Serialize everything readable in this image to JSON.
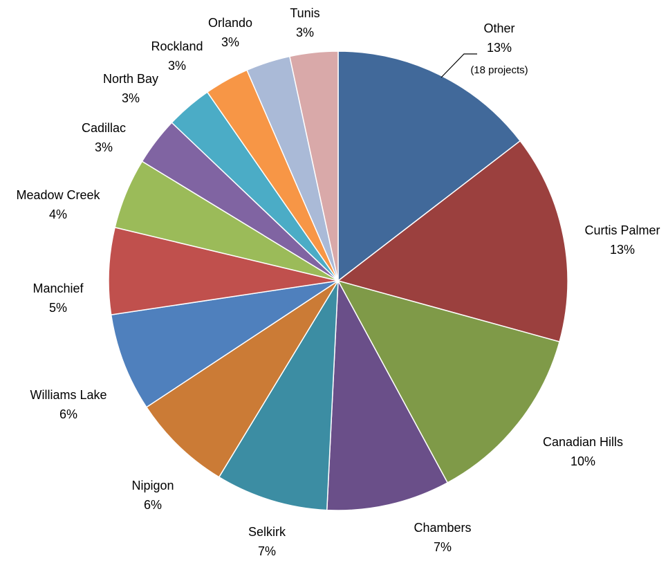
{
  "chart_data": {
    "type": "pie",
    "start_angle_deg": 0,
    "direction": "clockwise",
    "slices": [
      {
        "name": "Other",
        "value": 13,
        "label": "13%",
        "note": "(18 projects)",
        "color": "#41699A"
      },
      {
        "name": "Curtis Palmer",
        "value": 13,
        "label": "13%",
        "color": "#9B403E"
      },
      {
        "name": "Canadian Hills",
        "value": 10,
        "label": "10%",
        "color": "#7F9A48"
      },
      {
        "name": "Chambers",
        "value": 7,
        "label": "7%",
        "color": "#6A4F89"
      },
      {
        "name": "Selkirk",
        "value": 7,
        "label": "7%",
        "color": "#3C8DA3"
      },
      {
        "name": "Nipigon",
        "value": 6,
        "label": "6%",
        "color": "#CB7B36"
      },
      {
        "name": "Williams Lake",
        "value": 6,
        "label": "6%",
        "color": "#4F80BD"
      },
      {
        "name": "Manchief",
        "value": 5,
        "label": "5%",
        "color": "#C0504D"
      },
      {
        "name": "Meadow Creek",
        "value": 4,
        "label": "4%",
        "color": "#9BBB59"
      },
      {
        "name": "Cadillac",
        "value": 3,
        "label": "3%",
        "color": "#8064A2"
      },
      {
        "name": "North Bay",
        "value": 3,
        "label": "3%",
        "color": "#4BACC6"
      },
      {
        "name": "Rockland",
        "value": 3,
        "label": "3%",
        "color": "#F79646"
      },
      {
        "name": "Orlando",
        "value": 3,
        "label": "3%",
        "color": "#AABAD7"
      },
      {
        "name": "Tunis",
        "value": 3,
        "label": "3%",
        "color": "#D9A9A9"
      }
    ]
  }
}
